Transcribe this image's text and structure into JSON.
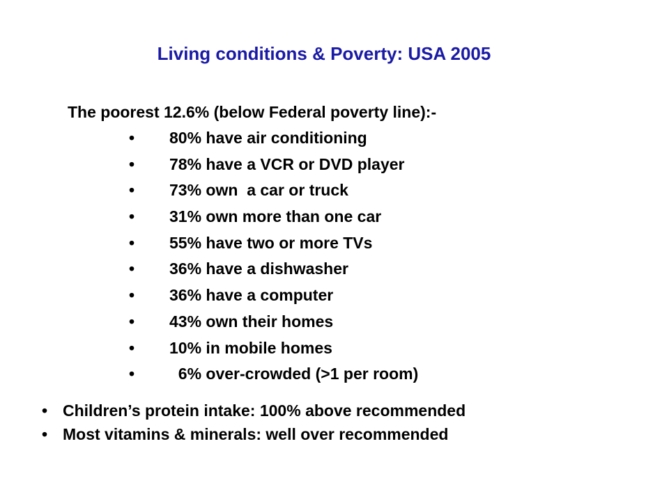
{
  "slide": {
    "title": "Living conditions & Poverty: USA 2005",
    "subtitle": "The poorest 12.6% (below Federal poverty line):-",
    "bullet_glyph": "•",
    "title_color": "#1a1aa6",
    "main_items": [
      "80% have air conditioning",
      "78% have a VCR or DVD player",
      "73% own  a car or truck",
      "31% own more than one car",
      "55% have two or more TVs",
      "36% have a dishwasher",
      "36% have a computer",
      "43% own their homes",
      "10% in mobile homes",
      "  6% over-crowded (>1 per room)"
    ],
    "bottom_items": [
      "Children’s protein intake: 100% above recommended",
      "Most vitamins & minerals: well over recommended"
    ]
  }
}
